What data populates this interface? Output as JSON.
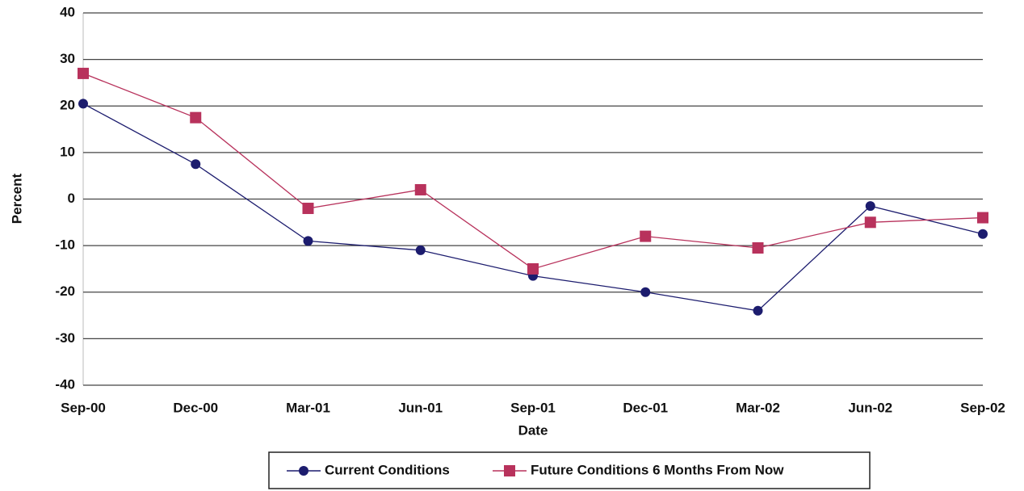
{
  "chart_data": {
    "type": "line",
    "x_label": "Date",
    "y_label": "Percent",
    "categories": [
      "Sep-00",
      "Dec-00",
      "Mar-01",
      "Jun-01",
      "Sep-01",
      "Dec-01",
      "Mar-02",
      "Jun-02",
      "Sep-02"
    ],
    "series": [
      {
        "name": "Current Conditions",
        "color": "#1c1c6e",
        "values": [
          20.5,
          7.5,
          -9,
          -11,
          -16.5,
          -20,
          -24,
          -1.5,
          -7.5
        ]
      },
      {
        "name": "Future Conditions 6 Months From Now",
        "color": "#b8325c",
        "values": [
          27,
          17.5,
          -2,
          2,
          -15,
          -8,
          -10.5,
          -5,
          -4
        ]
      }
    ],
    "ylim": [
      -40,
      40
    ],
    "yticks": [
      -40,
      -30,
      -20,
      -10,
      0,
      10,
      20,
      30,
      40
    ],
    "grid": true
  }
}
